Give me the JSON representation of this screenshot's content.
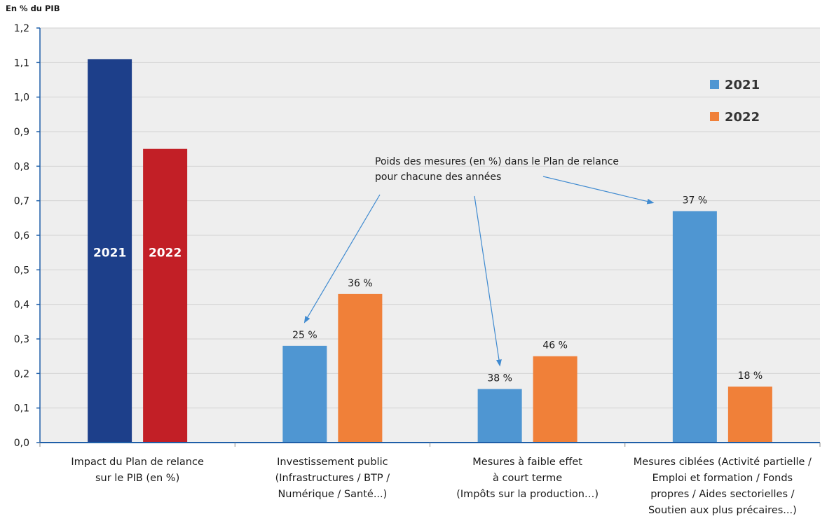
{
  "chart_data": {
    "type": "bar",
    "unit_label": "En % du PIB",
    "ylim": [
      0,
      1.2
    ],
    "yticks": [
      "0,0",
      "0,1",
      "0,2",
      "0,3",
      "0,4",
      "0,5",
      "0,6",
      "0,7",
      "0,8",
      "0,9",
      "1,0",
      "1,1",
      "1,2"
    ],
    "grid": true,
    "categories": [
      [
        "Impact du Plan de relance",
        "sur le PIB (en %)"
      ],
      [
        "Investissement public",
        "(Infrastructures / BTP /",
        "Numérique / Santé...)"
      ],
      [
        "Mesures à faible effet",
        "à court terme",
        "(Impôts sur la production…)"
      ],
      [
        "Mesures ciblées (Activité partielle /",
        "Emploi et formation / Fonds",
        "propres / Aides sectorielles /",
        "Soutien aux plus précaires...)"
      ]
    ],
    "series": [
      {
        "name": "2021",
        "values": [
          1.11,
          0.28,
          0.155,
          0.67
        ],
        "data_labels": [
          "2021",
          "25 %",
          "38 %",
          "37 %"
        ]
      },
      {
        "name": "2022",
        "values": [
          0.85,
          0.43,
          0.25,
          0.162
        ],
        "data_labels": [
          "2022",
          "36 %",
          "46 %",
          "18 %"
        ]
      }
    ],
    "colors": {
      "2021": "#4f96d2",
      "2022": "#f08039",
      "impact_2021": "#1d3f8a",
      "impact_2022": "#c21f26",
      "plot_bg": "#eeeeee",
      "axis": "#1f5fa8",
      "arrow": "#3f8ad0"
    },
    "legend": {
      "position": "top-right",
      "entries": [
        "2021",
        "2022"
      ]
    },
    "annotation": {
      "lines": [
        "Poids des mesures (en %) dans le Plan de relance",
        "pour chacune des années"
      ]
    }
  }
}
